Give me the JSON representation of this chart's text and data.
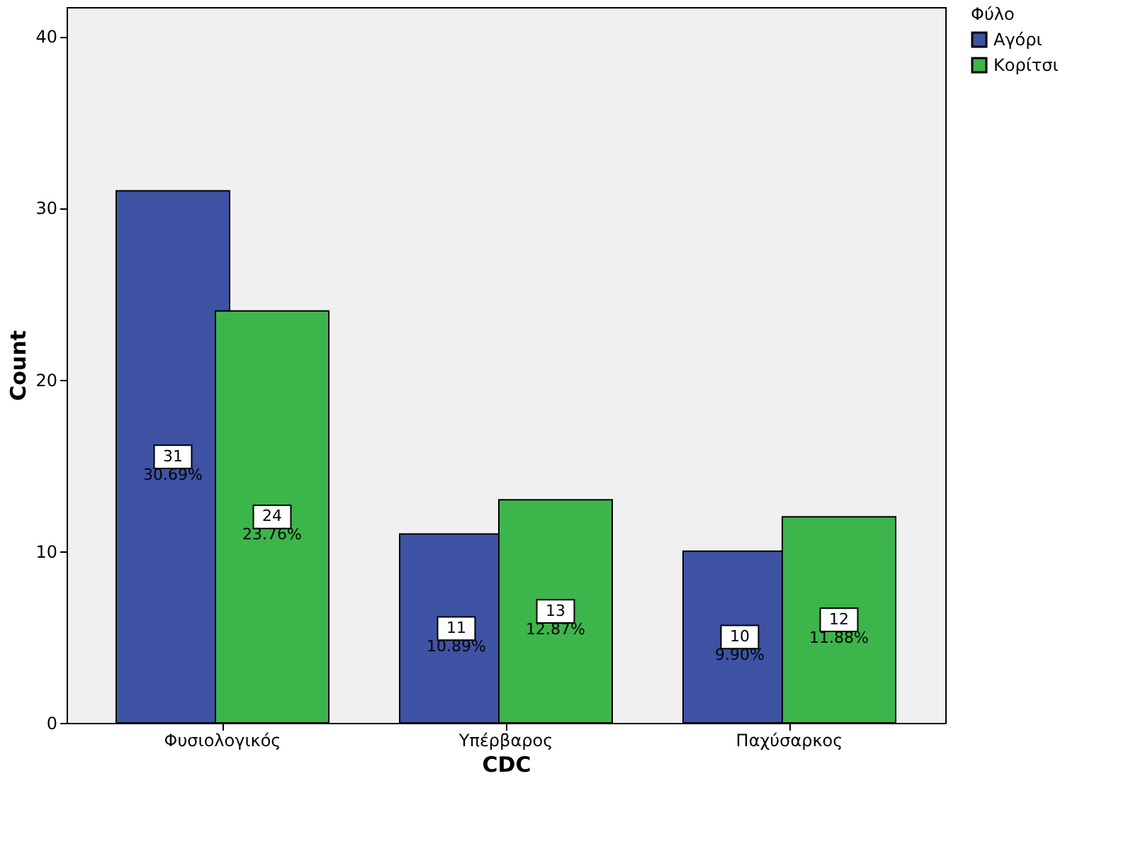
{
  "chart_data": {
    "type": "bar",
    "xlabel": "CDC",
    "ylabel": "Count",
    "legend_title": "Φύλο",
    "legend": "top right",
    "grid": false,
    "categories": [
      "Φυσιολογικός",
      "Υπέρβαρος",
      "Παχύσαρκος"
    ],
    "series": [
      {
        "name": "Αγόρι",
        "color": "#3e53a4",
        "values": [
          31,
          11,
          10
        ],
        "value_labels": [
          "31\n30.69%",
          "11\n10.89%",
          "10\n9.90%"
        ]
      },
      {
        "name": "Κορίτσι",
        "color": "#3cb54a",
        "values": [
          24,
          13,
          12
        ],
        "value_labels": [
          "24\n23.76%",
          "13\n12.87%",
          "12\n11.88%"
        ]
      }
    ],
    "ylim": [
      0,
      41.7
    ],
    "yticks": [
      0,
      10,
      20,
      30,
      40
    ]
  }
}
